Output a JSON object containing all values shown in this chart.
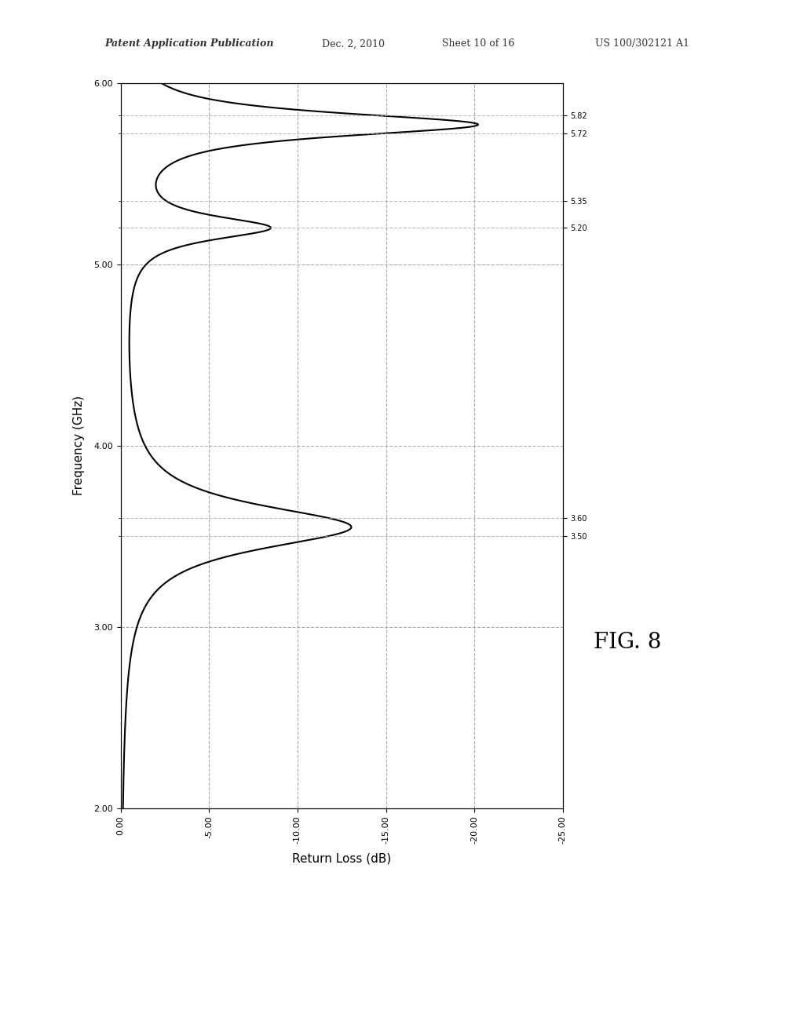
{
  "title_header": "Patent Application Publication",
  "title_date": "Dec. 2, 2010",
  "title_sheet": "Sheet 10 of 16",
  "title_patent": "US 100/302121 A1",
  "fig_label": "FIG. 8",
  "xlabel": "Frequency (GHz)",
  "ylabel": "Return Loss (dB)",
  "xlim": [
    2.0,
    6.0
  ],
  "ylim": [
    -25.0,
    0.0
  ],
  "xticks_major": [
    2.0,
    3.0,
    4.0,
    5.0,
    6.0
  ],
  "xticks_minor": [
    3.5,
    3.6,
    5.2,
    5.35,
    5.72,
    5.82
  ],
  "xtick_labels_major": [
    "2.00",
    "3.00",
    "4.00",
    "5.00",
    "6.00"
  ],
  "xtick_labels_minor": [
    "3.50",
    "3.60",
    "5.20",
    "5.35",
    "5.72",
    "5.82"
  ],
  "yticks": [
    0.0,
    -5.0,
    -10.0,
    -15.0,
    -20.0,
    -25.0
  ],
  "ytick_labels": [
    "0.00",
    "-5.00",
    "-10.00",
    "-15.00",
    "-20.00",
    "-25.00"
  ],
  "grid_major_color": "#aaaaaa",
  "grid_minor_color": "#aaaaaa",
  "line_color": "#000000",
  "background_color": "#ffffff",
  "header_color": "#333333"
}
